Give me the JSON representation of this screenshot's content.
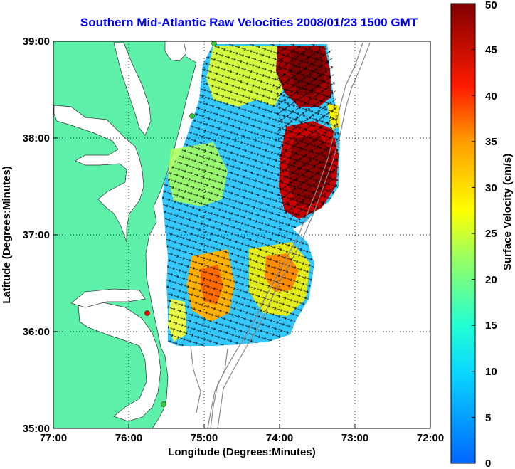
{
  "title": "Southern Mid-Atlantic Raw Velocities 2008/01/23 1500 GMT",
  "axes": {
    "xlabel": "Longitude (Degrees:Minutes)",
    "ylabel": "Latitude (Degrees:Minutes)",
    "xticks": [
      "77:00",
      "76:00",
      "75:00",
      "74:00",
      "73:00",
      "72:00"
    ],
    "yticks": [
      "39:00",
      "38:00",
      "37:00",
      "36:00",
      "35:00"
    ],
    "grid": true
  },
  "colorbar": {
    "label": "Surface Velocity (cm/s)",
    "ticks": [
      "50",
      "45",
      "40",
      "35",
      "30",
      "25",
      "20",
      "15",
      "10",
      "5",
      "0"
    ],
    "min": 0,
    "max": 50,
    "colormap": "jet"
  },
  "colors": {
    "land": "#5cf0a8",
    "water": "#ffffff",
    "title": "#0000ff",
    "station_green": "#33cc33",
    "station_red": "#ff0000"
  },
  "chart_data": {
    "type": "heatmap",
    "x_range": [
      "77:00",
      "72:00"
    ],
    "y_range": [
      "35:00",
      "39:00"
    ],
    "variable": "Surface Velocity (cm/s)",
    "value_range": [
      0,
      50
    ],
    "regions": [
      {
        "area": "northeast offshore",
        "speed_cms": 50
      },
      {
        "area": "east offshore near 38:00",
        "speed_cms": 50
      },
      {
        "area": "central shelf",
        "speed_cms": 15
      },
      {
        "area": "south central near 36:30",
        "speed_cms": 30
      },
      {
        "area": "southeast near 36:40",
        "speed_cms": 30
      }
    ]
  }
}
